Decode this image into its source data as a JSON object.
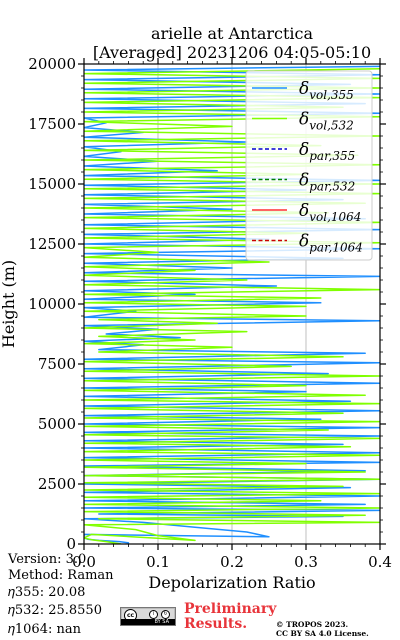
{
  "chart_data": {
    "type": "line",
    "title": "arielle at Antarctica",
    "subtitle": "[Averaged] 20231206 04:05-05:10",
    "xlabel": "Depolarization Ratio",
    "ylabel": "Height (m)",
    "xlim": [
      0,
      0.4
    ],
    "ylim": [
      0,
      20000
    ],
    "xticks": [
      "0.0",
      "0.1",
      "0.2",
      "0.3",
      "0.4"
    ],
    "yticks": [
      "0",
      "2500",
      "5000",
      "7500",
      "10000",
      "12500",
      "15000",
      "17500",
      "20000"
    ],
    "grid": "vertical",
    "legend_position": "top-right",
    "legend": [
      {
        "base": "δ",
        "sub": "vol,355",
        "color": "#1f8fff",
        "dash": "solid"
      },
      {
        "base": "δ",
        "sub": "vol,532",
        "color": "#80ff00",
        "dash": "solid"
      },
      {
        "base": "δ",
        "sub": "par,355",
        "color": "#0000cc",
        "dash": "dashed"
      },
      {
        "base": "δ",
        "sub": "par,532",
        "color": "#008000",
        "dash": "dashed"
      },
      {
        "base": "δ",
        "sub": "vol,1064",
        "color": "#ff3030",
        "dash": "solid"
      },
      {
        "base": "δ",
        "sub": "par,1064",
        "color": "#cc0000",
        "dash": "dashed"
      }
    ],
    "series": [
      {
        "name": "δvol,355",
        "color": "#1f8fff",
        "points": [
          [
            0.06,
            0
          ],
          [
            0.06,
            50
          ],
          [
            0.048,
            100
          ],
          [
            0.02,
            150
          ],
          [
            0.005,
            200
          ],
          [
            0.0,
            260
          ],
          [
            0.0,
            400
          ],
          [
            0.25,
            300
          ],
          [
            0.22,
            500
          ],
          [
            0.15,
            700
          ],
          [
            0.08,
            900
          ],
          [
            0.0,
            1050
          ],
          [
            0.35,
            1150
          ],
          [
            0.02,
            1250
          ],
          [
            0.4,
            1400
          ],
          [
            0.0,
            1500
          ],
          [
            0.38,
            1650
          ],
          [
            0.0,
            1800
          ],
          [
            0.4,
            2000
          ],
          [
            0.0,
            2150
          ],
          [
            0.36,
            2350
          ],
          [
            0.0,
            2500
          ],
          [
            0.4,
            2700
          ],
          [
            0.0,
            2850
          ],
          [
            0.38,
            3050
          ],
          [
            0.0,
            3250
          ],
          [
            0.4,
            3400
          ],
          [
            0.0,
            3600
          ],
          [
            0.4,
            3800
          ],
          [
            0.0,
            4000
          ],
          [
            0.35,
            4150
          ],
          [
            0.0,
            4300
          ],
          [
            0.4,
            4500
          ],
          [
            0.0,
            4650
          ],
          [
            0.4,
            4850
          ],
          [
            0.0,
            5000
          ],
          [
            0.32,
            5200
          ],
          [
            0.0,
            5350
          ],
          [
            0.4,
            5550
          ],
          [
            0.0,
            5750
          ],
          [
            0.36,
            5950
          ],
          [
            0.0,
            6150
          ],
          [
            0.3,
            6350
          ],
          [
            0.0,
            6500
          ],
          [
            0.4,
            6700
          ],
          [
            0.0,
            6900
          ],
          [
            0.33,
            7100
          ],
          [
            0.0,
            7300
          ],
          [
            0.4,
            7550
          ],
          [
            0.0,
            7700
          ],
          [
            0.38,
            7950
          ],
          [
            0.02,
            8100
          ],
          [
            0.08,
            8300
          ],
          [
            0.0,
            8450
          ],
          [
            0.13,
            8600
          ],
          [
            0.03,
            8750
          ],
          [
            0.1,
            8950
          ],
          [
            0.0,
            9100
          ],
          [
            0.4,
            9300
          ],
          [
            0.0,
            9450
          ],
          [
            0.07,
            9700
          ],
          [
            0.0,
            9850
          ],
          [
            0.32,
            10050
          ],
          [
            0.0,
            10200
          ],
          [
            0.15,
            10400
          ],
          [
            0.0,
            10550
          ],
          [
            0.26,
            10750
          ],
          [
            0.0,
            10950
          ],
          [
            0.4,
            11150
          ],
          [
            0.0,
            11300
          ],
          [
            0.2,
            11500
          ],
          [
            0.0,
            11700
          ],
          [
            0.35,
            11900
          ],
          [
            0.0,
            12100
          ],
          [
            0.4,
            12300
          ],
          [
            0.0,
            12500
          ],
          [
            0.25,
            12700
          ],
          [
            0.0,
            12900
          ],
          [
            0.4,
            13100
          ],
          [
            0.0,
            13300
          ],
          [
            0.38,
            13550
          ],
          [
            0.0,
            13750
          ],
          [
            0.2,
            13950
          ],
          [
            0.0,
            14150
          ],
          [
            0.35,
            14350
          ],
          [
            0.0,
            14550
          ],
          [
            0.3,
            14750
          ],
          [
            0.0,
            14950
          ],
          [
            0.4,
            15150
          ],
          [
            0.0,
            15350
          ],
          [
            0.18,
            15550
          ],
          [
            0.0,
            15750
          ],
          [
            0.1,
            15950
          ],
          [
            0.0,
            16150
          ],
          [
            0.05,
            16350
          ],
          [
            0.0,
            16550
          ],
          [
            0.22,
            16750
          ],
          [
            0.0,
            16950
          ],
          [
            0.08,
            17150
          ],
          [
            0.0,
            17350
          ],
          [
            0.03,
            17550
          ],
          [
            0.0,
            17750
          ],
          [
            0.4,
            17950
          ],
          [
            0.0,
            18150
          ],
          [
            0.38,
            18350
          ],
          [
            0.0,
            18550
          ],
          [
            0.4,
            18750
          ],
          [
            0.0,
            18950
          ],
          [
            0.36,
            19150
          ],
          [
            0.0,
            19350
          ],
          [
            0.4,
            19550
          ],
          [
            0.0,
            19750
          ],
          [
            0.4,
            19900
          ]
        ]
      },
      {
        "name": "δvol,532",
        "color": "#80ff00",
        "points": [
          [
            0.05,
            0
          ],
          [
            0.03,
            100
          ],
          [
            0.01,
            180
          ],
          [
            0.0,
            250
          ],
          [
            0.01,
            400
          ],
          [
            0.15,
            150
          ],
          [
            0.1,
            350
          ],
          [
            0.07,
            600
          ],
          [
            0.0,
            800
          ],
          [
            0.4,
            900
          ],
          [
            0.02,
            1050
          ],
          [
            0.38,
            1200
          ],
          [
            0.0,
            1350
          ],
          [
            0.4,
            1500
          ],
          [
            0.0,
            1650
          ],
          [
            0.32,
            1800
          ],
          [
            0.0,
            1950
          ],
          [
            0.4,
            2100
          ],
          [
            0.0,
            2250
          ],
          [
            0.35,
            2400
          ],
          [
            0.0,
            2550
          ],
          [
            0.4,
            2700
          ],
          [
            0.0,
            2850
          ],
          [
            0.38,
            3000
          ],
          [
            0.0,
            3200
          ],
          [
            0.3,
            3350
          ],
          [
            0.0,
            3500
          ],
          [
            0.4,
            3700
          ],
          [
            0.0,
            3850
          ],
          [
            0.36,
            4050
          ],
          [
            0.0,
            4200
          ],
          [
            0.4,
            4400
          ],
          [
            0.0,
            4550
          ],
          [
            0.33,
            4750
          ],
          [
            0.0,
            4900
          ],
          [
            0.4,
            5100
          ],
          [
            0.0,
            5250
          ],
          [
            0.35,
            5450
          ],
          [
            0.0,
            5650
          ],
          [
            0.4,
            5850
          ],
          [
            0.0,
            6000
          ],
          [
            0.38,
            6200
          ],
          [
            0.0,
            6400
          ],
          [
            0.3,
            6600
          ],
          [
            0.0,
            6800
          ],
          [
            0.4,
            7000
          ],
          [
            0.0,
            7200
          ],
          [
            0.28,
            7400
          ],
          [
            0.0,
            7600
          ],
          [
            0.35,
            7800
          ],
          [
            0.02,
            8000
          ],
          [
            0.2,
            8200
          ],
          [
            0.0,
            8350
          ],
          [
            0.15,
            8500
          ],
          [
            0.02,
            8650
          ],
          [
            0.22,
            8850
          ],
          [
            0.0,
            9000
          ],
          [
            0.18,
            9200
          ],
          [
            0.02,
            9350
          ],
          [
            0.3,
            9500
          ],
          [
            0.0,
            9700
          ],
          [
            0.3,
            9900
          ],
          [
            0.0,
            10050
          ],
          [
            0.32,
            10250
          ],
          [
            0.0,
            10400
          ],
          [
            0.4,
            10600
          ],
          [
            0.0,
            10800
          ],
          [
            0.22,
            11000
          ],
          [
            0.0,
            11200
          ],
          [
            0.15,
            11400
          ],
          [
            0.0,
            11550
          ],
          [
            0.25,
            11750
          ],
          [
            0.0,
            11950
          ],
          [
            0.1,
            12150
          ],
          [
            0.0,
            12350
          ],
          [
            0.4,
            12550
          ],
          [
            0.0,
            12750
          ],
          [
            0.3,
            12950
          ],
          [
            0.0,
            13150
          ],
          [
            0.4,
            13400
          ],
          [
            0.0,
            13600
          ],
          [
            0.33,
            13800
          ],
          [
            0.0,
            14000
          ],
          [
            0.38,
            14200
          ],
          [
            0.0,
            14400
          ],
          [
            0.4,
            14600
          ],
          [
            0.0,
            14800
          ],
          [
            0.4,
            15000
          ],
          [
            0.0,
            15200
          ],
          [
            0.3,
            15400
          ],
          [
            0.0,
            15600
          ],
          [
            0.4,
            15800
          ],
          [
            0.0,
            16000
          ],
          [
            0.37,
            16200
          ],
          [
            0.0,
            16400
          ],
          [
            0.32,
            16600
          ],
          [
            0.0,
            16800
          ],
          [
            0.4,
            17000
          ],
          [
            0.0,
            17200
          ],
          [
            0.2,
            17400
          ],
          [
            0.0,
            17600
          ],
          [
            0.4,
            17800
          ],
          [
            0.0,
            18000
          ],
          [
            0.35,
            18200
          ],
          [
            0.0,
            18400
          ],
          [
            0.4,
            18600
          ],
          [
            0.0,
            18800
          ],
          [
            0.4,
            19000
          ],
          [
            0.0,
            19200
          ],
          [
            0.4,
            19400
          ],
          [
            0.0,
            19600
          ],
          [
            0.4,
            19800
          ]
        ]
      }
    ]
  },
  "footer": {
    "version": "Version: 3.0",
    "method": "Method: Raman",
    "eta355": "𝜂355:  20.08",
    "eta532": "𝜂532: 25.8550",
    "eta1064": "𝜂1064:    nan",
    "preliminary_line1": "Preliminary",
    "preliminary_line2": "Results.",
    "copyright_line1": "© TROPOS 2023.",
    "copyright_line2": "CC BY SA 4.0 License.",
    "cc_badge": "cc",
    "cc_label": "BY SA"
  }
}
